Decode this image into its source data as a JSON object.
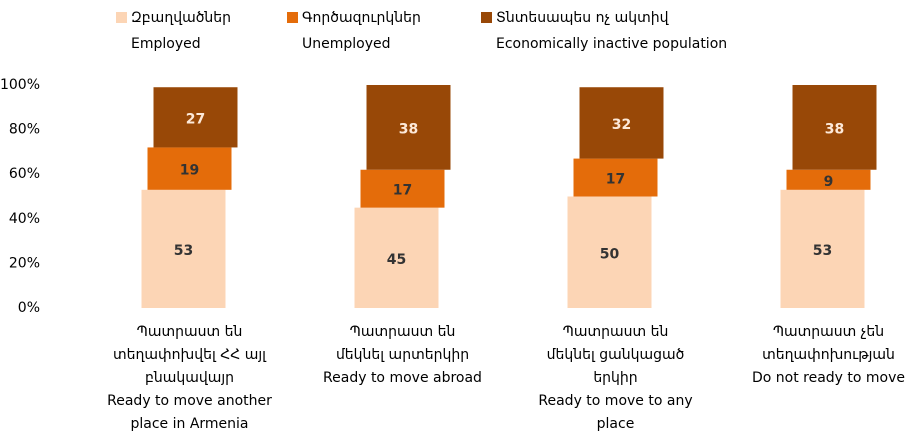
{
  "chart_data": {
    "type": "stacked_bar",
    "categories": [
      [
        "Պատրաստ են",
        "տեղափոխվել ՀՀ այլ",
        "բնակավայր",
        "Ready to move another",
        "place in Armenia"
      ],
      [
        "Պատրաստ են",
        "մեկնել արտերկիր",
        "Ready to move abroad"
      ],
      [
        "Պատրաստ են",
        "մեկնել ցանկացած",
        "երկիր",
        "Ready to move to any",
        "place"
      ],
      [
        "Պատրաստ չեն",
        "տեղափոխության",
        "Do not ready to move"
      ]
    ],
    "series": [
      {
        "name": [
          "Զբաղվածներ",
          "Employed"
        ],
        "color": "#fcd5b5",
        "label_color": "#333333",
        "values": [
          53,
          45,
          50,
          53
        ]
      },
      {
        "name": [
          "Գործազուրկներ",
          "Unemployed"
        ],
        "color": "#e46c0a",
        "label_color": "#333333",
        "values": [
          19,
          17,
          17,
          9
        ]
      },
      {
        "name": [
          "Տնտեսապես ոչ ակտիվ",
          "Economically inactive population"
        ],
        "color": "#984807",
        "label_color": "#fde9d9",
        "values": [
          27,
          38,
          32,
          38
        ]
      }
    ],
    "ylim": [
      0,
      100
    ],
    "yticks": [
      {
        "value": 0,
        "label": "0%"
      },
      {
        "value": 20,
        "label": "20%"
      },
      {
        "value": 40,
        "label": "40%"
      },
      {
        "value": 60,
        "label": "60%"
      },
      {
        "value": 80,
        "label": "80%"
      },
      {
        "value": 100,
        "label": "100%"
      }
    ],
    "legend": "top"
  }
}
